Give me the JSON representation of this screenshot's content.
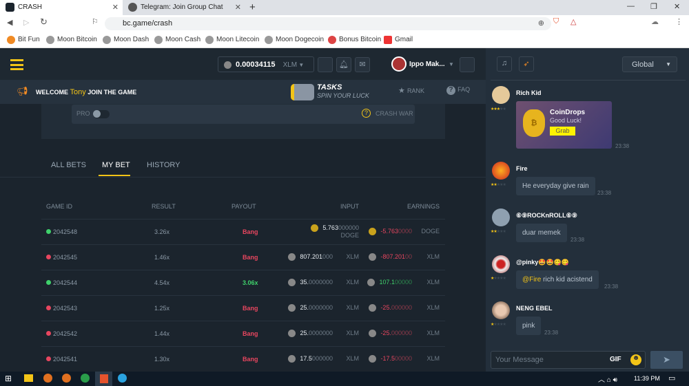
{
  "browser": {
    "tabs": [
      {
        "title": "CRASH"
      },
      {
        "title": "Telegram: Join Group Chat"
      }
    ],
    "url": "bc.game/crash",
    "bookmarks": [
      "Bit Fun",
      "Moon Bitcoin",
      "Moon Dash",
      "Moon Cash",
      "Moon Litecoin",
      "Moon Dogecoin",
      "Bonus Bitcoin",
      "Gmail"
    ]
  },
  "header": {
    "balance": "0.00034115",
    "currency": "XLM",
    "username": "Ippo Mak..."
  },
  "welcome": {
    "prefix": "WELCOME",
    "name": "Tony",
    "suffix": "JOIN THE GAME"
  },
  "tasks": {
    "title": "TASKS",
    "subtitle": "SPIN YOUR LUCK"
  },
  "nav": {
    "rank": "RANK",
    "faq": "FAQ"
  },
  "controls": {
    "pro": "PRO",
    "crash_war": "CRASH WAR"
  },
  "bet_tabs": [
    "ALL BETS",
    "MY BET",
    "HISTORY"
  ],
  "active_tab": "MY BET",
  "table": {
    "headers": [
      "GAME ID",
      "RESULT",
      "PAYOUT",
      "INPUT",
      "EARNINGS"
    ],
    "rows": [
      {
        "id": "2042548",
        "win": true,
        "result": "3.26x",
        "payout": "Bang",
        "coin": "DOGE",
        "input_main": "5.763",
        "input_dim": "000000",
        "earn_main": "-5.763",
        "earn_dim": "0000",
        "earn_pos": false
      },
      {
        "id": "2042545",
        "win": false,
        "result": "1.46x",
        "payout": "Bang",
        "coin": "XLM",
        "input_main": "807.201",
        "input_dim": "000",
        "earn_main": "-807.201",
        "earn_dim": "00",
        "earn_pos": false
      },
      {
        "id": "2042544",
        "win": true,
        "result": "4.54x",
        "payout": "3.06x",
        "coin": "XLM",
        "input_main": "35.",
        "input_dim": "0000000",
        "earn_main": "107.1",
        "earn_dim": "00000",
        "earn_pos": true
      },
      {
        "id": "2042543",
        "win": false,
        "result": "1.25x",
        "payout": "Bang",
        "coin": "XLM",
        "input_main": "25.",
        "input_dim": "0000000",
        "earn_main": "-25.",
        "earn_dim": "000000",
        "earn_pos": false
      },
      {
        "id": "2042542",
        "win": false,
        "result": "1.44x",
        "payout": "Bang",
        "coin": "XLM",
        "input_main": "25.",
        "input_dim": "0000000",
        "earn_main": "-25.",
        "earn_dim": "000000",
        "earn_pos": false
      },
      {
        "id": "2042541",
        "win": false,
        "result": "1.30x",
        "payout": "Bang",
        "coin": "XLM",
        "input_main": "17.5",
        "input_dim": "000000",
        "earn_main": "-17.5",
        "earn_dim": "00000",
        "earn_pos": false
      }
    ]
  },
  "chat": {
    "channel": "Global",
    "coindrop": {
      "user": "Rich Kid",
      "title": "CoinDrops",
      "subtitle": "Good Luck!",
      "button": "Grab",
      "time": "23:38"
    },
    "messages": [
      {
        "user": "Fire",
        "mention": "",
        "text": "He everyday give rain",
        "time": "23:38"
      },
      {
        "user": "⑥⑨ROCKnROLL⑥⑨",
        "mention": "",
        "text": "duar memek",
        "time": "23:38"
      },
      {
        "user": "@pinky🤩🤩😋😋",
        "mention": "@Fire",
        "text": "rich kid acistend",
        "time": "23:38"
      },
      {
        "user": "NENG EBEL",
        "mention": "",
        "text": "pink",
        "time": "23:38"
      }
    ],
    "placeholder": "Your Message",
    "gif": "GIF"
  },
  "taskbar": {
    "time": "11:39 PM"
  },
  "colors": {
    "accent": "#f3c417",
    "win": "#3fd16b",
    "loss": "#e8465f"
  }
}
